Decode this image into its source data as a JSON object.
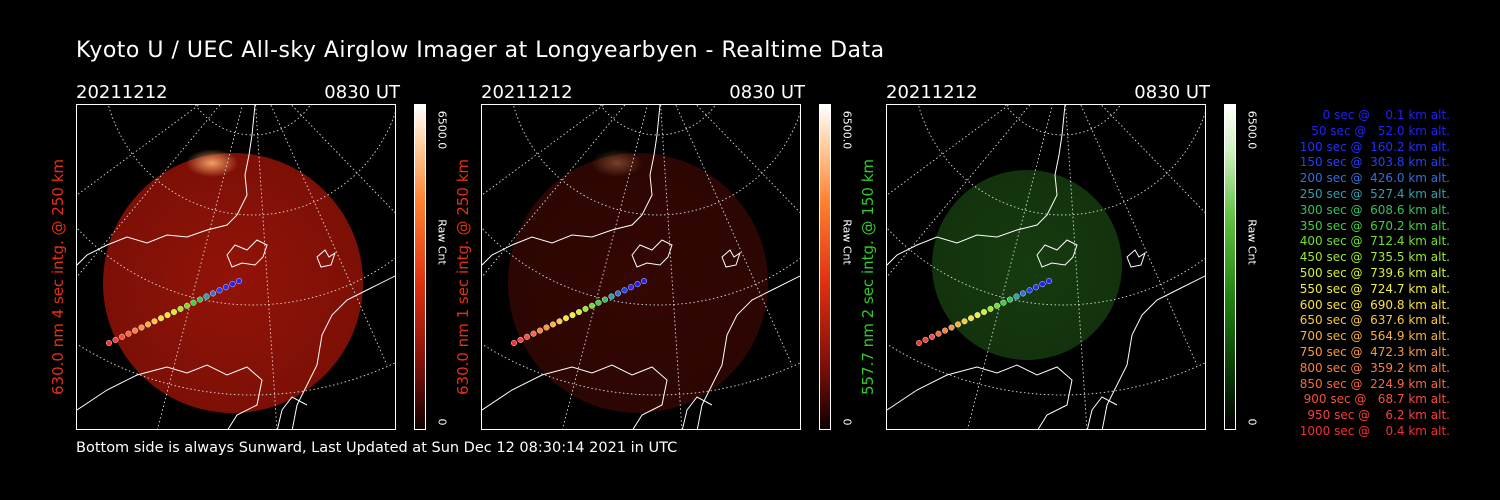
{
  "title": "Kyoto U / UEC All-sky Airglow Imager at Longyearbyen - Realtime Data",
  "footer": "Bottom side is always Sunward, Last Updated at Sun Dec 12 08:30:14 2021 in UTC",
  "panels": [
    {
      "date": "20211212",
      "time": "0830 UT",
      "label": "630.0 nm 4 sec intg. @ 250 km",
      "label_color": "#e83010",
      "scale_max": "6500.0",
      "scale_min": "0",
      "unit": "Raw Cnt",
      "glow": "#9a1408",
      "glow_strength": 0.95,
      "colormap": "red"
    },
    {
      "date": "20211212",
      "time": "0830 UT",
      "label": "630.0 nm 1 sec intg. @ 250 km",
      "label_color": "#e83010",
      "scale_max": "6500.0",
      "scale_min": "0",
      "unit": "Raw Cnt",
      "glow": "#4a0a04",
      "glow_strength": 0.7,
      "colormap": "red"
    },
    {
      "date": "20211212",
      "time": "0830 UT",
      "label": "557.7 nm 2 sec intg. @ 150 km",
      "label_color": "#2ecc28",
      "scale_max": "6500.0",
      "scale_min": "0",
      "unit": "Raw Cnt",
      "glow": "#1c4a14",
      "glow_strength": 0.8,
      "colormap": "green"
    }
  ],
  "legend": [
    {
      "text": "   0 sec @    0.1 km alt.",
      "color": "#2020ff"
    },
    {
      "text": "  50 sec @   52.0 km alt.",
      "color": "#2020ff"
    },
    {
      "text": " 100 sec @  160.2 km alt.",
      "color": "#2030ff"
    },
    {
      "text": " 150 sec @  303.8 km alt.",
      "color": "#2040ff"
    },
    {
      "text": " 200 sec @  426.0 km alt.",
      "color": "#3070e0"
    },
    {
      "text": " 250 sec @  527.4 km alt.",
      "color": "#30a0b0"
    },
    {
      "text": " 300 sec @  608.6 km alt.",
      "color": "#30c060"
    },
    {
      "text": " 350 sec @  670.2 km alt.",
      "color": "#40d040"
    },
    {
      "text": " 400 sec @  712.4 km alt.",
      "color": "#70e030"
    },
    {
      "text": " 450 sec @  735.5 km alt.",
      "color": "#a0e830"
    },
    {
      "text": " 500 sec @  739.6 km alt.",
      "color": "#d0f030"
    },
    {
      "text": " 550 sec @  724.7 km alt.",
      "color": "#f0f040"
    },
    {
      "text": " 600 sec @  690.8 km alt.",
      "color": "#f8e040"
    },
    {
      "text": " 650 sec @  637.6 km alt.",
      "color": "#f8c840"
    },
    {
      "text": " 700 sec @  564.9 km alt.",
      "color": "#f8b040"
    },
    {
      "text": " 750 sec @  472.3 km alt.",
      "color": "#f89840"
    },
    {
      "text": " 800 sec @  359.2 km alt.",
      "color": "#f88040"
    },
    {
      "text": " 850 sec @  224.9 km alt.",
      "color": "#f86840"
    },
    {
      "text": " 900 sec @   68.7 km alt.",
      "color": "#f85040"
    },
    {
      "text": " 950 sec @    6.2 km alt.",
      "color": "#f84040"
    },
    {
      "text": "1000 sec @    0.4 km alt.",
      "color": "#f83030"
    }
  ]
}
